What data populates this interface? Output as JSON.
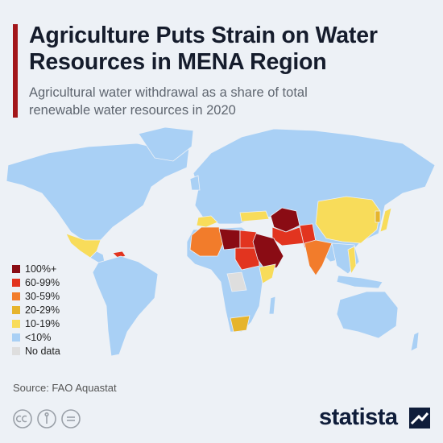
{
  "header": {
    "title": "Agriculture Puts Strain on Water Resources in MENA Region",
    "subtitle": "Agricultural water withdrawal as a share of total renewable water resources in 2020"
  },
  "legend": {
    "items": [
      {
        "label": "100%+",
        "color": "#8a0c14"
      },
      {
        "label": "60-99%",
        "color": "#e2341f"
      },
      {
        "label": "30-59%",
        "color": "#f27c2b"
      },
      {
        "label": "20-29%",
        "color": "#e6b42c"
      },
      {
        "label": "10-19%",
        "color": "#f8dc5a"
      },
      {
        "label": "<10%",
        "color": "#a9d0f5"
      },
      {
        "label": "No data",
        "color": "#dedede"
      }
    ]
  },
  "source": "Source: FAO Aquastat",
  "brand": "statista"
}
